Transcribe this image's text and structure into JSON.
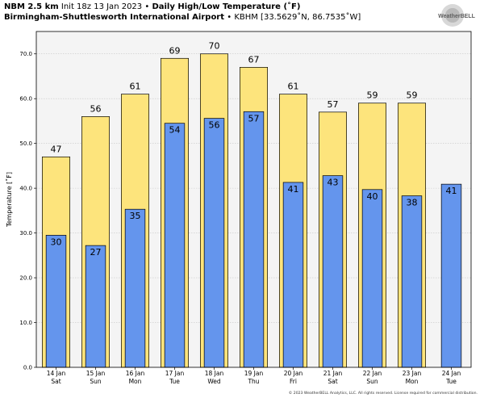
{
  "header": {
    "model": "NBM 2.5 km",
    "init": "Init 18z 13 Jan 2023",
    "bullet": "•",
    "product": "Daily High/Low Temperature (˚F)",
    "station_name": "Birmingham-Shuttlesworth International Airport",
    "station_info": "KBHM [33.5629˚N, 86.7535˚W]"
  },
  "logo": {
    "text": "WeatherBELL"
  },
  "footer": {
    "copyright": "© 2023 WeatherBELL Analytics, LLC. All rights reserved. License required for commercial distribution."
  },
  "chart_data": {
    "type": "bar",
    "ylabel": "Temperature [˚F]",
    "ylim": [
      0,
      75
    ],
    "yticks": [
      0,
      10,
      20,
      30,
      40,
      50,
      60,
      70
    ],
    "ytick_labels": [
      "0.0",
      "10.0",
      "20.0",
      "30.0",
      "40.0",
      "50.0",
      "60.0",
      "70.0"
    ],
    "categories": [
      "14 Jan",
      "15 Jan",
      "16 Jan",
      "17 Jan",
      "18 Jan",
      "19 Jan",
      "20 Jan",
      "21 Jan",
      "22 Jan",
      "23 Jan",
      "24 Jan"
    ],
    "days": [
      "Sat",
      "Sun",
      "Mon",
      "Tue",
      "Wed",
      "Thu",
      "Fri",
      "Sat",
      "Sun",
      "Mon",
      "Tue"
    ],
    "series": [
      {
        "values": [
          47,
          56,
          61,
          69,
          70,
          67,
          61,
          57,
          59,
          59,
          null
        ],
        "labels": [
          "47",
          "56",
          "61",
          "69",
          "70",
          "67",
          "61",
          "57",
          "59",
          "59",
          ""
        ],
        "color": "#fde47c"
      },
      {
        "values": [
          29.5,
          27.2,
          35.3,
          54.5,
          55.6,
          57.1,
          41.3,
          42.8,
          39.7,
          38.3,
          40.9
        ],
        "labels": [
          "30",
          "27",
          "35",
          "54",
          "56",
          "57",
          "41",
          "43",
          "40",
          "38",
          "41"
        ],
        "color": "#6495ed"
      }
    ],
    "grid": true,
    "background": "#f4f4f4"
  }
}
